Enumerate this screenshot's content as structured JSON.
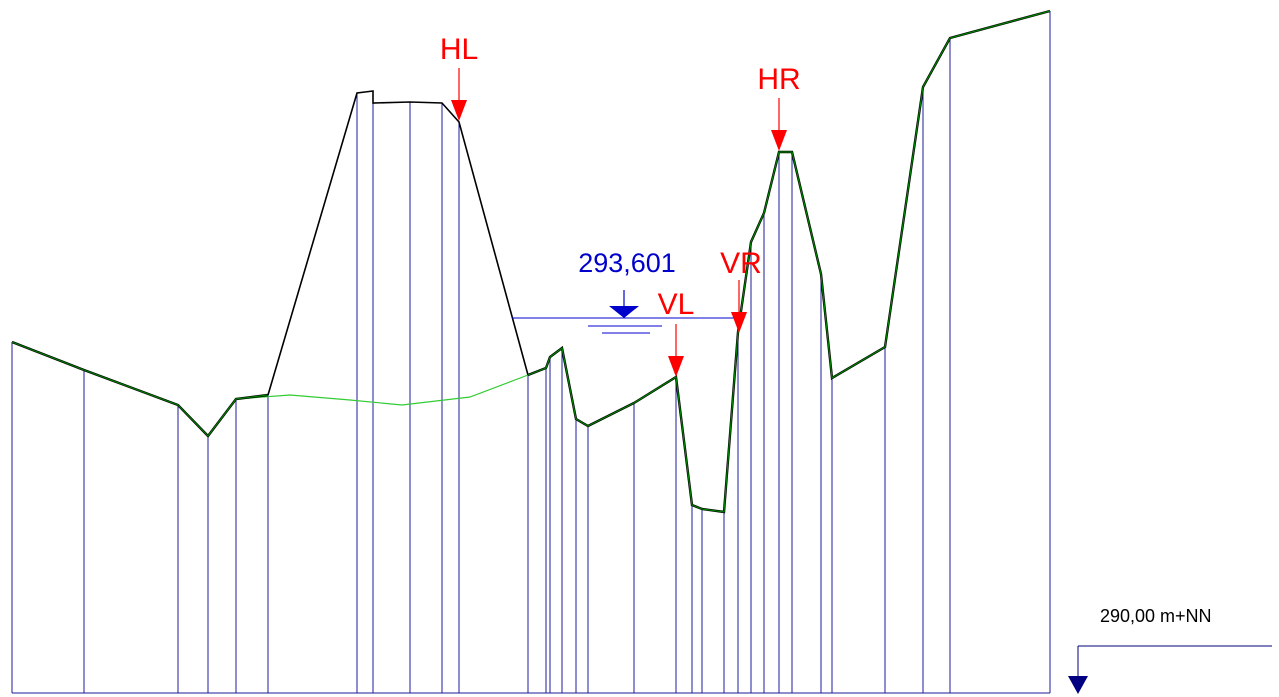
{
  "labels": {
    "hl": "HL",
    "hr": "HR",
    "vl": "VL",
    "vr": "VR",
    "water_level": "293,601",
    "datum": "290,00 m+NN"
  },
  "colors": {
    "terrain_outline": "#000000",
    "terrain_green": "#008000",
    "embankment_line": "#33cc33",
    "verticals": "#1c1c9a",
    "water": "#0000cc",
    "marker_red": "#ff0000",
    "datum_arrow": "#000080"
  }
}
